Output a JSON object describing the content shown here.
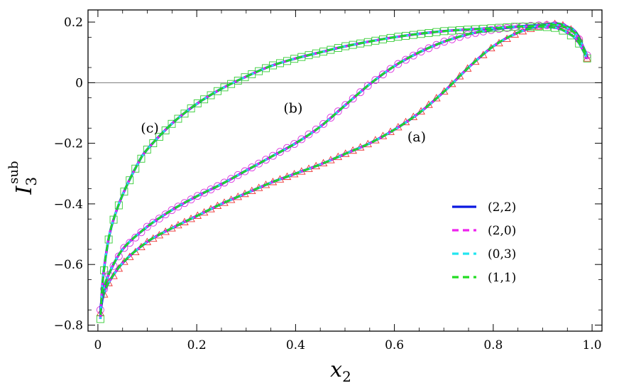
{
  "chart_data": {
    "type": "line",
    "xlabel": "x",
    "xlabel_sub": "2",
    "ylabel": "I",
    "ylabel_sub": "3",
    "ylabel_sup": "sub",
    "xlim": [
      -0.02,
      1.02
    ],
    "ylim": [
      -0.82,
      0.24
    ],
    "xticks": [
      0,
      0.2,
      0.4,
      0.6,
      0.8,
      1.0
    ],
    "xtick_labels": [
      "0",
      "0.2",
      "0.4",
      "0.6",
      "0.8",
      "1.0"
    ],
    "yticks": [
      -0.8,
      -0.6,
      -0.4,
      -0.2,
      0,
      0.2
    ],
    "ytick_labels": [
      "−0.8",
      "−0.6",
      "−0.4",
      "−0.2",
      "0",
      "0.2"
    ],
    "grid": false,
    "zero_line": true,
    "legend_position": "lower-right",
    "legend": [
      {
        "label": "(2,2)",
        "color": "#0a18e0",
        "style": "solid"
      },
      {
        "label": "(2,0)",
        "color": "#ee22ee",
        "style": "dashed"
      },
      {
        "label": "(0,3)",
        "color": "#22e6f0",
        "style": "dashed"
      },
      {
        "label": "(1,1)",
        "color": "#22dd22",
        "style": "dashed"
      }
    ],
    "annotations": [
      {
        "text": "(a)",
        "x": 0.645,
        "y": -0.18
      },
      {
        "text": "(b)",
        "x": 0.395,
        "y": -0.085
      },
      {
        "text": "(c)",
        "x": 0.105,
        "y": -0.15
      }
    ],
    "curves": [
      {
        "label": "(a)",
        "marker": "triangle",
        "marker_color": "#ee3333",
        "x": [
          0.005,
          0.01,
          0.02,
          0.05,
          0.1,
          0.15,
          0.2,
          0.25,
          0.3,
          0.35,
          0.4,
          0.45,
          0.5,
          0.55,
          0.6,
          0.65,
          0.7,
          0.75,
          0.8,
          0.85,
          0.9,
          0.93,
          0.95,
          0.97,
          0.99
        ],
        "y": [
          -0.76,
          -0.71,
          -0.665,
          -0.595,
          -0.525,
          -0.48,
          -0.44,
          -0.4,
          -0.365,
          -0.33,
          -0.3,
          -0.27,
          -0.235,
          -0.2,
          -0.155,
          -0.1,
          -0.03,
          0.05,
          0.12,
          0.165,
          0.19,
          0.195,
          0.185,
          0.16,
          0.08
        ]
      },
      {
        "label": "(b)",
        "marker": "circle",
        "marker_color": "#dd33dd",
        "x": [
          0.005,
          0.01,
          0.02,
          0.05,
          0.1,
          0.15,
          0.2,
          0.25,
          0.3,
          0.35,
          0.4,
          0.45,
          0.5,
          0.55,
          0.6,
          0.65,
          0.7,
          0.75,
          0.8,
          0.85,
          0.9,
          0.93,
          0.95,
          0.97,
          0.99
        ],
        "y": [
          -0.75,
          -0.695,
          -0.64,
          -0.55,
          -0.475,
          -0.42,
          -0.375,
          -0.335,
          -0.29,
          -0.245,
          -0.2,
          -0.145,
          -0.075,
          -0.005,
          0.055,
          0.1,
          0.135,
          0.16,
          0.175,
          0.185,
          0.19,
          0.19,
          0.18,
          0.155,
          0.09
        ]
      },
      {
        "label": "(c)",
        "marker": "square",
        "marker_color": "#33cc33",
        "x": [
          0.005,
          0.01,
          0.02,
          0.03,
          0.05,
          0.08,
          0.1,
          0.15,
          0.2,
          0.25,
          0.3,
          0.35,
          0.4,
          0.45,
          0.5,
          0.6,
          0.7,
          0.8,
          0.85,
          0.9,
          0.93,
          0.95,
          0.97,
          0.99
        ],
        "y": [
          -0.78,
          -0.65,
          -0.53,
          -0.46,
          -0.37,
          -0.27,
          -0.22,
          -0.135,
          -0.07,
          -0.02,
          0.02,
          0.055,
          0.08,
          0.1,
          0.12,
          0.15,
          0.17,
          0.18,
          0.185,
          0.185,
          0.18,
          0.165,
          0.14,
          0.08
        ]
      }
    ]
  }
}
